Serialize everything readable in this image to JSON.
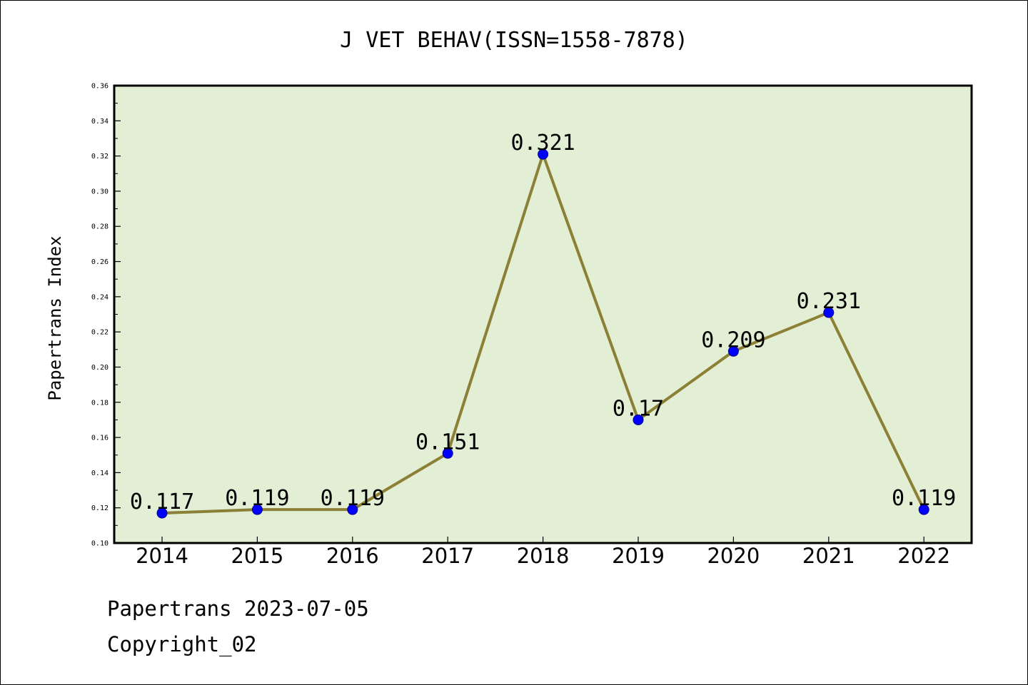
{
  "chart_data": {
    "type": "line",
    "title": "J VET BEHAV(ISSN=1558-7878)",
    "ylabel": "Papertrans Index",
    "xlabel": "",
    "categories": [
      "2014",
      "2015",
      "2016",
      "2017",
      "2018",
      "2019",
      "2020",
      "2021",
      "2022"
    ],
    "values": [
      0.117,
      0.119,
      0.119,
      0.151,
      0.321,
      0.17,
      0.209,
      0.231,
      0.119
    ],
    "data_labels": [
      "0.117",
      "0.119",
      "0.119",
      "0.151",
      "0.321",
      "0.17",
      "0.209",
      "0.231",
      "0.119"
    ],
    "ylim": [
      0.1,
      0.36
    ],
    "yticks": [
      "0.10",
      "0.12",
      "0.14",
      "0.16",
      "0.18",
      "0.20",
      "0.22",
      "0.24",
      "0.26",
      "0.28",
      "0.30",
      "0.32",
      "0.34",
      "0.36"
    ],
    "grid": false,
    "colors": {
      "plot_background": "#e2efd5",
      "line": "#8b8035",
      "marker": "#0000ff",
      "marker_edge": "#00008b"
    }
  },
  "footer": {
    "date_line": "Papertrans 2023-07-05",
    "copyright_line": "Copyright_02"
  }
}
